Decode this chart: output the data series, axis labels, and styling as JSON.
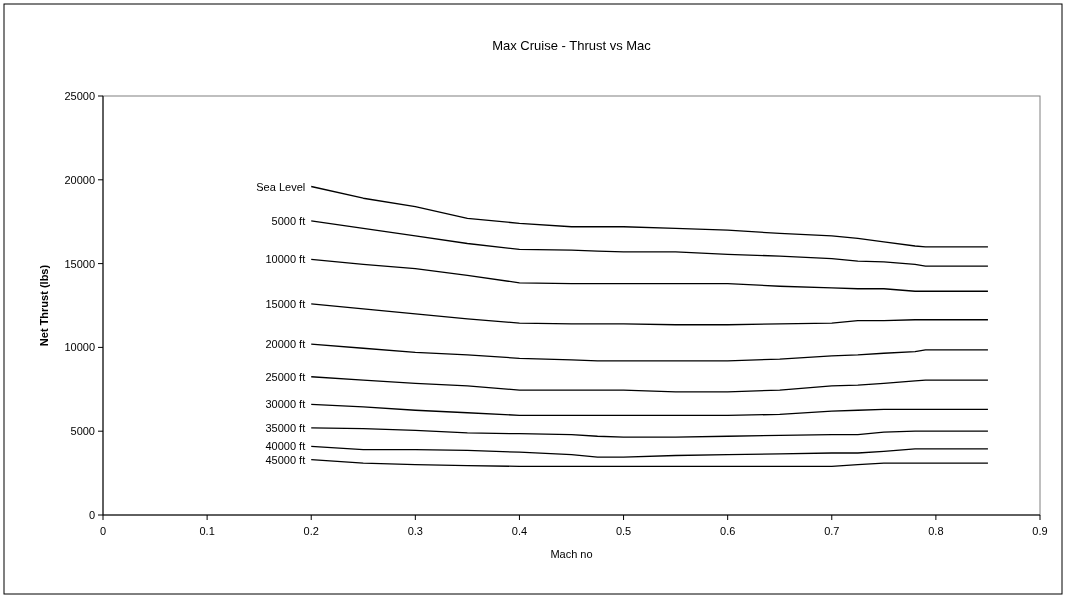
{
  "chart_data": {
    "type": "line",
    "title": "Max Cruise - Thrust vs Mac",
    "xlabel": "Mach no",
    "ylabel": "Net Thrust (lbs)",
    "x": [
      0.2,
      0.25,
      0.3,
      0.35,
      0.4,
      0.45,
      0.475,
      0.5,
      0.55,
      0.6,
      0.65,
      0.7,
      0.725,
      0.75,
      0.78,
      0.79,
      0.85
    ],
    "xlim": [
      0,
      0.9
    ],
    "xticks": [
      0,
      0.1,
      0.2,
      0.3,
      0.4,
      0.5,
      0.6,
      0.7,
      0.8,
      0.9
    ],
    "ylim": [
      0,
      25000
    ],
    "yticks": [
      0,
      5000,
      10000,
      15000,
      20000,
      25000
    ],
    "grid": false,
    "marker": "none",
    "line_style": "solid",
    "series": [
      {
        "name": "Sea Level",
        "color": "#000000",
        "values": [
          19600,
          18900,
          18400,
          17700,
          17400,
          17200,
          17200,
          17200,
          17100,
          17000,
          16800,
          16650,
          16500,
          16300,
          16050,
          16000,
          16000
        ]
      },
      {
        "name": "5000 ft",
        "color": "#000000",
        "values": [
          17550,
          17100,
          16650,
          16200,
          15850,
          15800,
          15750,
          15700,
          15700,
          15550,
          15450,
          15300,
          15150,
          15100,
          14950,
          14850,
          14850
        ]
      },
      {
        "name": "10000 ft",
        "color": "#000000",
        "values": [
          15250,
          14950,
          14700,
          14300,
          13850,
          13800,
          13800,
          13800,
          13800,
          13800,
          13650,
          13550,
          13500,
          13500,
          13350,
          13350,
          13350
        ]
      },
      {
        "name": "15000 ft",
        "color": "#000000",
        "values": [
          12600,
          12300,
          12000,
          11700,
          11450,
          11400,
          11400,
          11400,
          11350,
          11350,
          11400,
          11450,
          11600,
          11600,
          11650,
          11650,
          11650
        ]
      },
      {
        "name": "20000 ft",
        "color": "#000000",
        "values": [
          10200,
          9950,
          9700,
          9550,
          9350,
          9250,
          9200,
          9200,
          9200,
          9200,
          9300,
          9500,
          9550,
          9650,
          9750,
          9850,
          9850
        ]
      },
      {
        "name": "25000 ft",
        "color": "#000000",
        "values": [
          8250,
          8050,
          7850,
          7700,
          7450,
          7450,
          7450,
          7450,
          7350,
          7350,
          7450,
          7700,
          7750,
          7850,
          8000,
          8050,
          8050
        ]
      },
      {
        "name": "30000 ft",
        "color": "#000000",
        "values": [
          6600,
          6450,
          6250,
          6100,
          5950,
          5950,
          5950,
          5950,
          5950,
          5950,
          6000,
          6200,
          6250,
          6300,
          6300,
          6300,
          6300
        ]
      },
      {
        "name": "35000 ft",
        "color": "#000000",
        "values": [
          5200,
          5150,
          5050,
          4900,
          4850,
          4800,
          4700,
          4650,
          4650,
          4700,
          4750,
          4800,
          4800,
          4950,
          5000,
          5000,
          5000
        ]
      },
      {
        "name": "40000 ft",
        "color": "#000000",
        "values": [
          4100,
          3900,
          3900,
          3850,
          3750,
          3600,
          3450,
          3450,
          3550,
          3600,
          3650,
          3700,
          3700,
          3800,
          3950,
          3950,
          3950
        ]
      },
      {
        "name": "45000 ft",
        "color": "#000000",
        "values": [
          3300,
          3100,
          3000,
          2950,
          2900,
          2900,
          2900,
          2900,
          2900,
          2900,
          2900,
          2900,
          3000,
          3100,
          3100,
          3100,
          3100
        ]
      }
    ]
  }
}
